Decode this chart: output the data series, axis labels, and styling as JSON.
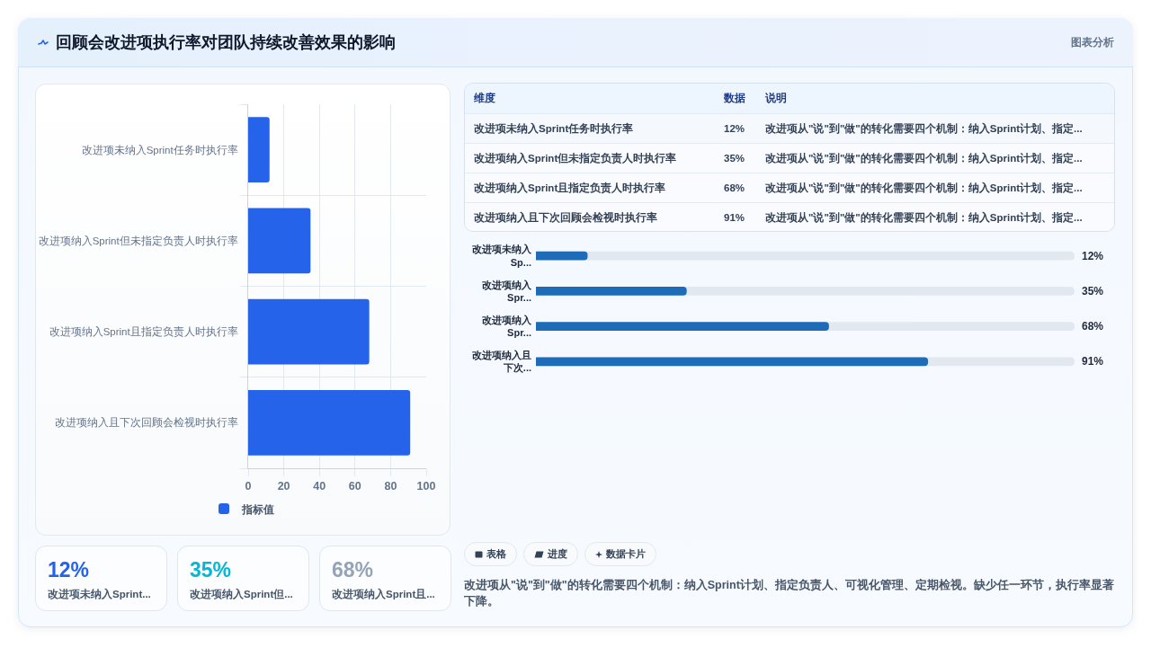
{
  "chart_data": [
    {
      "type": "other",
      "title": "回顾会改进项执行率对团队持续改善效果的影响",
      "annotations": [
        "图表分析"
      ]
    },
    {
      "type": "bar",
      "orientation": "horizontal",
      "categories": [
        "改进项未纳入Sprint任务时执行率",
        "改进项纳入Sprint但未指定负责人时执行率",
        "改进项纳入Sprint且指定负责人时执行率",
        "改进项纳入且下次回顾会检视时执行率"
      ],
      "series": [
        {
          "name": "指标值",
          "color": "#2563eb",
          "values": [
            12,
            35,
            68,
            91
          ]
        }
      ],
      "xlim": [
        0,
        100
      ],
      "xticks": [
        0,
        20,
        40,
        60,
        80,
        100
      ],
      "grid": true,
      "legend": "bottom"
    },
    {
      "type": "other",
      "categories": [
        "改进项未纳入Sprint任务时执行率",
        "改进项纳入Sprint但未指定负责人时执行率",
        "改进项纳入Sprint且指定负责人时执行率",
        "改进项纳入且下次回顾会检视时执行率"
      ],
      "value_labels": [
        "12%",
        "35%",
        "68%",
        "91%"
      ],
      "annotations": [
        "维度",
        "数据",
        "说明",
        "改进项从\"说\"到\"做\"的转化需要四个机制：纳入Sprint计划、指定...",
        "改进项从\"说\"到\"做\"的转化需要四个机制：纳入Sprint计划、指定...",
        "改进项从\"说\"到\"做\"的转化需要四个机制：纳入Sprint计划、指定...",
        "改进项从\"说\"到\"做\"的转化需要四个机制：纳入Sprint计划、指定..."
      ]
    },
    {
      "type": "bar",
      "orientation": "horizontal",
      "categories": [
        "改进项未纳入Sp...",
        "改进项纳入Spr...",
        "改进项纳入Spr...",
        "改进项纳入且下次..."
      ],
      "values": [
        12,
        35,
        68,
        91
      ],
      "value_labels": [
        "12%",
        "35%",
        "68%",
        "91%"
      ],
      "color": "#1e6bb8",
      "xlim": [
        0,
        125
      ],
      "tick_labels": "y"
    },
    {
      "type": "other",
      "categories": [
        "改进项未纳入Sprint...",
        "改进项纳入Sprint但...",
        "改进项纳入Sprint且..."
      ],
      "value_labels": [
        "12%",
        "35%",
        "68%"
      ]
    },
    {
      "type": "other",
      "annotations": [
        "表格",
        "进度",
        "数据卡片",
        "改进项从\"说\"到\"做\"的转化需要四个机制：纳入Sprint计划、指定负责人、可视化管理、定期检视。缺少任一环节，执行率显著下降。"
      ]
    }
  ]
}
